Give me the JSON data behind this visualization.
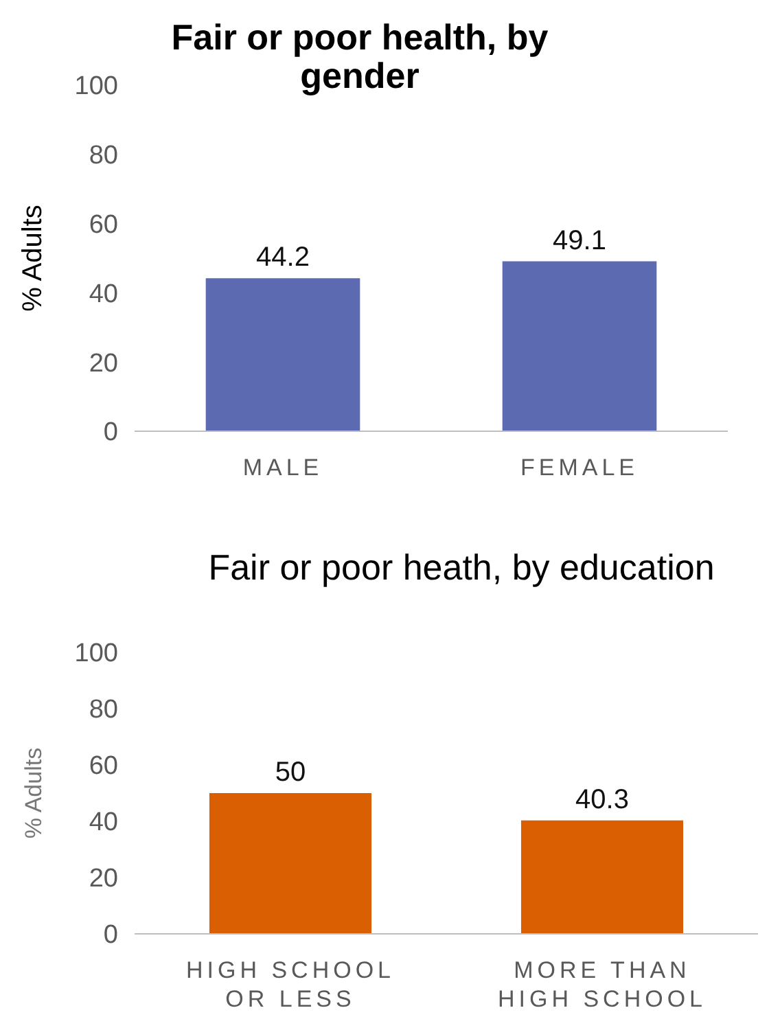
{
  "chart_data": [
    {
      "type": "bar",
      "title": "Fair or poor health, by gender",
      "ylabel": "% Adults",
      "categories": [
        "MALE",
        "FEMALE"
      ],
      "values": [
        44.2,
        49.1
      ],
      "color": "#5b6ab1",
      "ylim": [
        0,
        100
      ],
      "yticks": [
        0,
        20,
        40,
        60,
        80,
        100
      ],
      "data_labels": true
    },
    {
      "type": "bar",
      "title": "Fair or poor heath, by education",
      "ylabel": "% Adults",
      "categories": [
        "HIGH SCHOOL OR LESS",
        "MORE THAN HIGH SCHOOL"
      ],
      "values": [
        50,
        40.3
      ],
      "color": "#d95f02",
      "ylim": [
        0,
        100
      ],
      "yticks": [
        0,
        20,
        40,
        60,
        80,
        100
      ],
      "data_labels": true
    }
  ]
}
